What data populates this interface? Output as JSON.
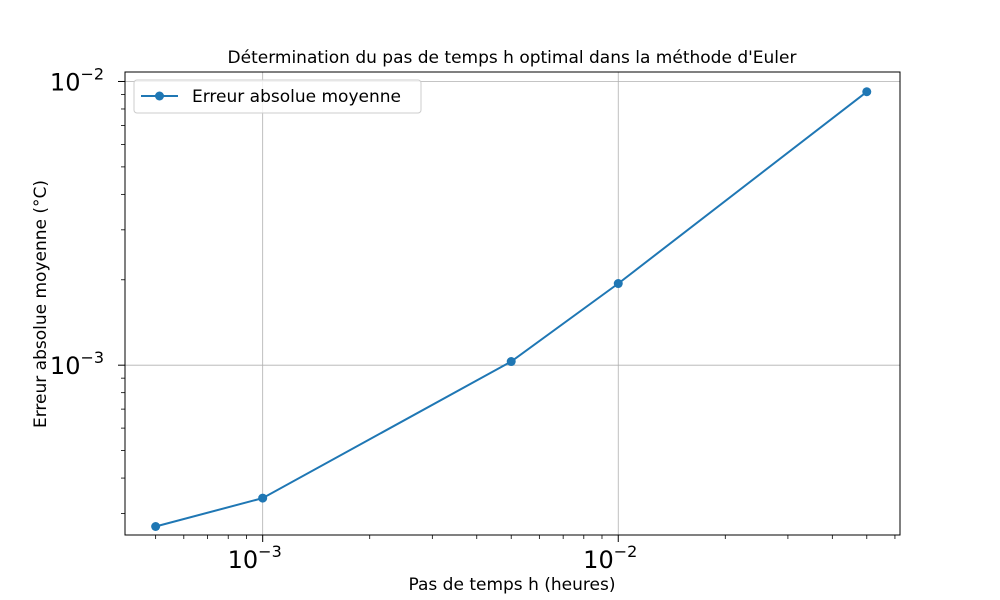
{
  "chart_data": {
    "type": "line",
    "title": "Détermination du pas de temps h optimal dans la méthode d'Euler",
    "xlabel": "Pas de temps h (heures)",
    "ylabel": "Erreur absolue moyenne (°C)",
    "x_scale": "log",
    "y_scale": "log",
    "xlim": [
      0.00041,
      0.062
    ],
    "ylim": [
      0.000252,
      0.0108
    ],
    "grid": true,
    "legend_position": "top-left",
    "x_ticks": [
      {
        "value": 0.001,
        "base": "10",
        "exp": "−3"
      },
      {
        "value": 0.01,
        "base": "10",
        "exp": "−2"
      }
    ],
    "y_ticks": [
      {
        "value": 0.001,
        "base": "10",
        "exp": "−3"
      },
      {
        "value": 0.01,
        "base": "10",
        "exp": "−2"
      }
    ],
    "series": [
      {
        "name": "Erreur absolue moyenne",
        "color": "#1f77b4",
        "marker": "circle",
        "x": [
          0.0005,
          0.001,
          0.005,
          0.01,
          0.05
        ],
        "y": [
          0.00027,
          0.00034,
          0.00103,
          0.00194,
          0.0092
        ]
      }
    ]
  }
}
